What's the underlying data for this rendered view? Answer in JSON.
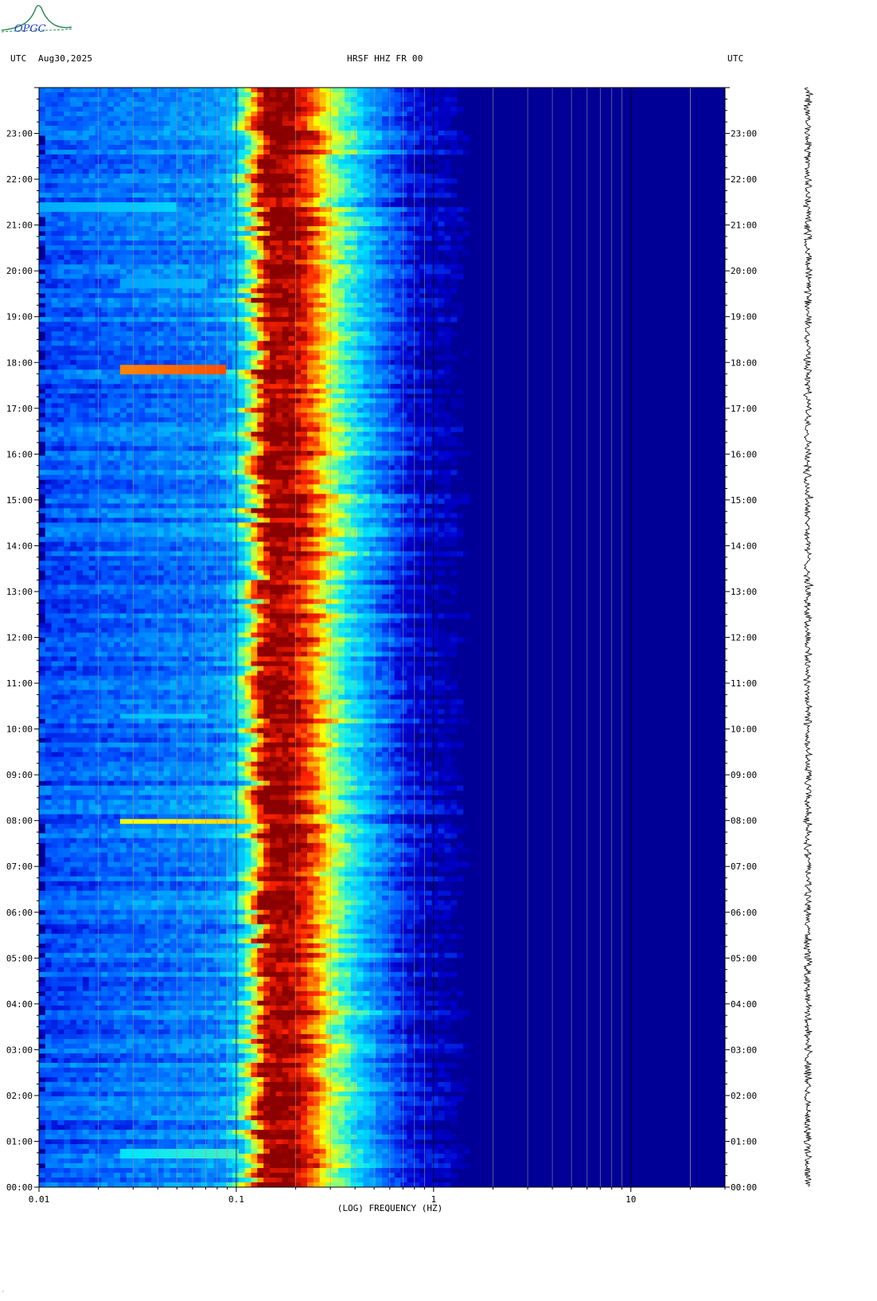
{
  "header": {
    "left_tz": "UTC",
    "date": "Aug30,2025",
    "station": "HRSF HHZ FR 00",
    "right_tz": "UTC"
  },
  "logo": {
    "text": "OPGC"
  },
  "chart_data": {
    "type": "heatmap",
    "title": "HRSF HHZ FR 00",
    "xlabel": "(LOG) FREQUENCY (HZ)",
    "xscale": "log",
    "xlim": [
      0.01,
      30
    ],
    "x_tick_labels": [
      {
        "value": 0.01,
        "label": "0.01"
      },
      {
        "value": 0.1,
        "label": "0.1"
      },
      {
        "value": 1,
        "label": "1"
      },
      {
        "value": 10,
        "label": "10"
      }
    ],
    "ylabel": "UTC",
    "ylim_hours": [
      0,
      24
    ],
    "y_tick_labels": [
      "00:00",
      "01:00",
      "02:00",
      "03:00",
      "04:00",
      "05:00",
      "06:00",
      "07:00",
      "08:00",
      "09:00",
      "10:00",
      "11:00",
      "12:00",
      "13:00",
      "14:00",
      "15:00",
      "16:00",
      "17:00",
      "18:00",
      "19:00",
      "20:00",
      "21:00",
      "22:00",
      "23:00"
    ],
    "colormap": [
      "#00008b",
      "#0000cd",
      "#0050ff",
      "#00a0ff",
      "#00e5ff",
      "#80ff80",
      "#ffff00",
      "#ff9900",
      "#ff2200",
      "#8b0000"
    ],
    "spectral_profile": [
      {
        "f": 0.01,
        "level": 0.22
      },
      {
        "f": 0.025,
        "level": 0.26
      },
      {
        "f": 0.08,
        "level": 0.3
      },
      {
        "f": 0.1,
        "level": 0.38
      },
      {
        "f": 0.12,
        "level": 0.62
      },
      {
        "f": 0.14,
        "level": 0.99
      },
      {
        "f": 0.19,
        "level": 0.99
      },
      {
        "f": 0.24,
        "level": 0.86
      },
      {
        "f": 0.3,
        "level": 0.62
      },
      {
        "f": 0.4,
        "level": 0.44
      },
      {
        "f": 0.55,
        "level": 0.28
      },
      {
        "f": 0.8,
        "level": 0.12
      },
      {
        "f": 1.5,
        "level": 0.04
      },
      {
        "f": 30,
        "level": 0.02
      }
    ],
    "events": [
      {
        "hour": 17.85,
        "f_start": 0.025,
        "f_end": 0.09,
        "level": 0.85
      },
      {
        "hour": 8.0,
        "f_start": 0.025,
        "f_end": 0.12,
        "level": 0.72
      },
      {
        "hour": 21.4,
        "f_start": 0.01,
        "f_end": 0.05,
        "level": 0.42
      },
      {
        "hour": 10.3,
        "f_start": 0.025,
        "f_end": 0.07,
        "level": 0.42
      },
      {
        "hour": 0.75,
        "f_start": 0.025,
        "f_end": 0.1,
        "level": 0.5
      },
      {
        "hour": 19.7,
        "f_start": 0.025,
        "f_end": 0.07,
        "level": 0.38
      }
    ],
    "grid": true
  }
}
